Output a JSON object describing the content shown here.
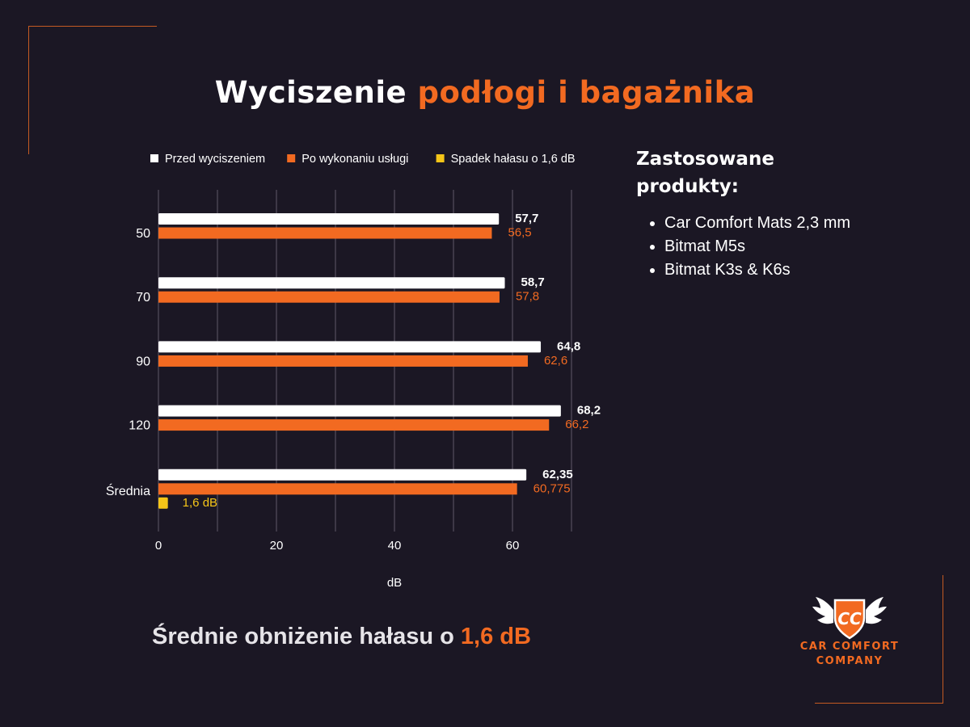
{
  "title": {
    "part1": "Wyciszenie ",
    "part2": "podłogi i bagażnika"
  },
  "chart_data": {
    "type": "bar",
    "orientation": "horizontal",
    "categories": [
      "50",
      "70",
      "90",
      "120",
      "Średnia"
    ],
    "series": [
      {
        "name": "Przed wyciszeniem",
        "color": "#ffffff",
        "values": [
          57.7,
          58.7,
          64.8,
          68.2,
          62.35
        ],
        "labels": [
          "57,7",
          "58,7",
          "64,8",
          "68,2",
          "62,35"
        ]
      },
      {
        "name": "Po wykonaniu usługi",
        "color": "#f26a21",
        "values": [
          56.5,
          57.8,
          62.6,
          66.2,
          60.775
        ],
        "labels": [
          "56,5",
          "57,8",
          "62,6",
          "66,2",
          "60,775"
        ]
      },
      {
        "name": "Spadek hałasu o 1,6 dB",
        "color": "#f5c518",
        "values": [
          null,
          null,
          null,
          null,
          1.6
        ],
        "labels": [
          "",
          "",
          "",
          "",
          "1,6 dB"
        ]
      }
    ],
    "xlabel": "dB",
    "ylabel": "",
    "xlim": [
      0,
      70
    ],
    "xticks": [
      "0",
      "20",
      "40",
      "60"
    ],
    "grid": true,
    "legend_position": "top"
  },
  "side": {
    "title": "Zastosowane produkty:",
    "products": [
      "Car Comfort Mats 2,3 mm",
      "Bitmat M5s",
      "Bitmat K3s & K6s"
    ]
  },
  "summary": {
    "text": "Średnie obniżenie hałasu o ",
    "value": "1,6 dB"
  },
  "logo": {
    "monogram": "CC",
    "line1": "CAR COMFORT",
    "line2": "COMPANY",
    "icon": "winged-shield-icon"
  },
  "colors": {
    "background": "#1b1724",
    "accent": "#f26a21",
    "highlight": "#f5c518",
    "grid": "#5f5a68",
    "axis_text": "#ffffff"
  }
}
